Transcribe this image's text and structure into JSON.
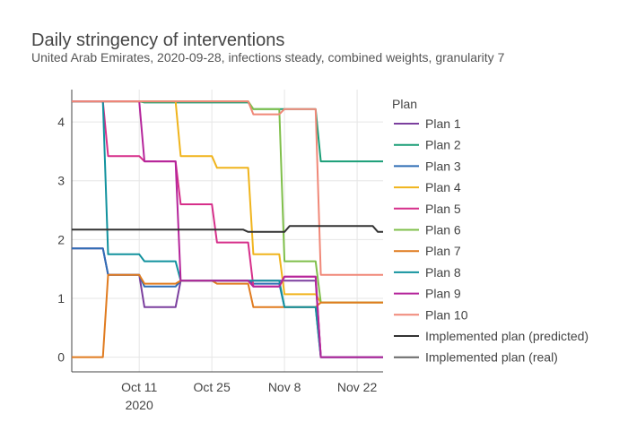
{
  "chart_data": {
    "type": "line",
    "title": "Daily stringency of interventions",
    "subtitle": "United Arab Emirates, 2020-09-28, infections steady, combined weights, granularity 7",
    "xlabel": "",
    "ylabel": "",
    "x_range": [
      "2020-09-28",
      "2020-11-27"
    ],
    "ylim": [
      -0.25,
      4.55
    ],
    "y_ticks": [
      0,
      1,
      2,
      3,
      4
    ],
    "x_ticks": [
      {
        "date": "2020-10-11",
        "label": "Oct 11",
        "sublabel": "2020"
      },
      {
        "date": "2020-10-25",
        "label": "Oct 25",
        "sublabel": ""
      },
      {
        "date": "2020-11-08",
        "label": "Nov 8",
        "sublabel": ""
      },
      {
        "date": "2020-11-22",
        "label": "Nov 22",
        "sublabel": ""
      }
    ],
    "grid": true,
    "legend_title": "Plan",
    "legend_position": "right",
    "series": [
      {
        "name": "Plan 1",
        "color": "#7b3f9e",
        "points": [
          [
            "2020-09-28",
            1.85
          ],
          [
            "2020-10-04",
            1.85
          ],
          [
            "2020-10-05",
            1.4
          ],
          [
            "2020-10-11",
            1.4
          ],
          [
            "2020-10-12",
            0.85
          ],
          [
            "2020-10-18",
            0.85
          ],
          [
            "2020-10-19",
            1.3
          ],
          [
            "2020-11-14",
            1.3
          ],
          [
            "2020-11-15",
            0.0
          ],
          [
            "2020-11-27",
            0.0
          ]
        ]
      },
      {
        "name": "Plan 2",
        "color": "#1a9e77",
        "points": [
          [
            "2020-09-28",
            4.35
          ],
          [
            "2020-10-11",
            4.35
          ],
          [
            "2020-10-12",
            4.33
          ],
          [
            "2020-11-01",
            4.33
          ],
          [
            "2020-11-02",
            4.22
          ],
          [
            "2020-11-14",
            4.22
          ],
          [
            "2020-11-15",
            3.33
          ],
          [
            "2020-11-27",
            3.33
          ]
        ]
      },
      {
        "name": "Plan 3",
        "color": "#2f6db5",
        "points": [
          [
            "2020-09-28",
            1.85
          ],
          [
            "2020-10-04",
            1.85
          ],
          [
            "2020-10-05",
            1.4
          ],
          [
            "2020-10-11",
            1.4
          ],
          [
            "2020-10-12",
            1.2
          ],
          [
            "2020-10-18",
            1.2
          ],
          [
            "2020-10-19",
            1.3
          ],
          [
            "2020-11-01",
            1.3
          ],
          [
            "2020-11-02",
            1.25
          ],
          [
            "2020-11-07",
            1.25
          ],
          [
            "2020-11-08",
            0.85
          ],
          [
            "2020-11-14",
            0.85
          ],
          [
            "2020-11-15",
            0.0
          ],
          [
            "2020-11-27",
            0.0
          ]
        ]
      },
      {
        "name": "Plan 4",
        "color": "#f0b41c",
        "points": [
          [
            "2020-09-28",
            4.35
          ],
          [
            "2020-10-18",
            4.35
          ],
          [
            "2020-10-19",
            3.42
          ],
          [
            "2020-10-25",
            3.42
          ],
          [
            "2020-10-26",
            3.22
          ],
          [
            "2020-11-01",
            3.22
          ],
          [
            "2020-11-02",
            1.75
          ],
          [
            "2020-11-07",
            1.75
          ],
          [
            "2020-11-08",
            1.07
          ],
          [
            "2020-11-14",
            1.07
          ],
          [
            "2020-11-15",
            0.93
          ],
          [
            "2020-11-27",
            0.93
          ]
        ]
      },
      {
        "name": "Plan 5",
        "color": "#d62f8a",
        "points": [
          [
            "2020-09-28",
            4.35
          ],
          [
            "2020-10-04",
            4.35
          ],
          [
            "2020-10-05",
            3.42
          ],
          [
            "2020-10-11",
            3.42
          ],
          [
            "2020-10-12",
            3.33
          ],
          [
            "2020-10-18",
            3.33
          ],
          [
            "2020-10-19",
            2.6
          ],
          [
            "2020-10-25",
            2.6
          ],
          [
            "2020-10-26",
            1.95
          ],
          [
            "2020-11-01",
            1.95
          ],
          [
            "2020-11-02",
            1.2
          ],
          [
            "2020-11-07",
            1.2
          ],
          [
            "2020-11-08",
            1.37
          ],
          [
            "2020-11-14",
            1.37
          ],
          [
            "2020-11-15",
            0.0
          ],
          [
            "2020-11-27",
            0.0
          ]
        ]
      },
      {
        "name": "Plan 6",
        "color": "#7fbf4a",
        "points": [
          [
            "2020-09-28",
            4.35
          ],
          [
            "2020-11-01",
            4.35
          ],
          [
            "2020-11-02",
            4.22
          ],
          [
            "2020-11-07",
            4.22
          ],
          [
            "2020-11-08",
            1.63
          ],
          [
            "2020-11-14",
            1.63
          ],
          [
            "2020-11-15",
            0.93
          ],
          [
            "2020-11-27",
            0.93
          ]
        ]
      },
      {
        "name": "Plan 7",
        "color": "#e07b1f",
        "points": [
          [
            "2020-09-28",
            0.0
          ],
          [
            "2020-10-04",
            0.0
          ],
          [
            "2020-10-05",
            1.4
          ],
          [
            "2020-10-11",
            1.4
          ],
          [
            "2020-10-12",
            1.25
          ],
          [
            "2020-10-18",
            1.25
          ],
          [
            "2020-10-19",
            1.3
          ],
          [
            "2020-10-25",
            1.3
          ],
          [
            "2020-10-26",
            1.25
          ],
          [
            "2020-11-01",
            1.25
          ],
          [
            "2020-11-02",
            0.85
          ],
          [
            "2020-11-07",
            0.85
          ],
          [
            "2020-11-08",
            0.85
          ],
          [
            "2020-11-14",
            0.85
          ],
          [
            "2020-11-15",
            0.93
          ],
          [
            "2020-11-27",
            0.93
          ]
        ]
      },
      {
        "name": "Plan 8",
        "color": "#12929e",
        "points": [
          [
            "2020-09-28",
            4.35
          ],
          [
            "2020-10-04",
            4.35
          ],
          [
            "2020-10-05",
            1.75
          ],
          [
            "2020-10-11",
            1.75
          ],
          [
            "2020-10-12",
            1.63
          ],
          [
            "2020-10-18",
            1.63
          ],
          [
            "2020-10-19",
            1.3
          ],
          [
            "2020-11-07",
            1.3
          ],
          [
            "2020-11-08",
            0.85
          ],
          [
            "2020-11-14",
            0.85
          ],
          [
            "2020-11-15",
            0.0
          ],
          [
            "2020-11-27",
            0.0
          ]
        ]
      },
      {
        "name": "Plan 9",
        "color": "#b5259b",
        "points": [
          [
            "2020-09-28",
            4.35
          ],
          [
            "2020-10-11",
            4.35
          ],
          [
            "2020-10-12",
            3.33
          ],
          [
            "2020-10-18",
            3.33
          ],
          [
            "2020-10-19",
            1.3
          ],
          [
            "2020-11-01",
            1.3
          ],
          [
            "2020-11-02",
            1.2
          ],
          [
            "2020-11-07",
            1.2
          ],
          [
            "2020-11-08",
            1.37
          ],
          [
            "2020-11-14",
            1.37
          ],
          [
            "2020-11-15",
            0.0
          ],
          [
            "2020-11-27",
            0.0
          ]
        ]
      },
      {
        "name": "Plan 10",
        "color": "#f08878",
        "points": [
          [
            "2020-09-28",
            4.35
          ],
          [
            "2020-11-01",
            4.35
          ],
          [
            "2020-11-02",
            4.13
          ],
          [
            "2020-11-07",
            4.13
          ],
          [
            "2020-11-08",
            4.22
          ],
          [
            "2020-11-14",
            4.22
          ],
          [
            "2020-11-15",
            1.4
          ],
          [
            "2020-11-27",
            1.4
          ]
        ]
      },
      {
        "name": "Implemented plan (predicted)",
        "color": "#333333",
        "points": [
          [
            "2020-09-28",
            2.17
          ],
          [
            "2020-10-31",
            2.17
          ],
          [
            "2020-11-01",
            2.13
          ],
          [
            "2020-11-08",
            2.13
          ],
          [
            "2020-11-09",
            2.23
          ],
          [
            "2020-11-25",
            2.23
          ],
          [
            "2020-11-26",
            2.13
          ],
          [
            "2020-11-27",
            2.13
          ]
        ]
      },
      {
        "name": "Implemented plan (real)",
        "color": "#666666",
        "points": []
      }
    ]
  }
}
